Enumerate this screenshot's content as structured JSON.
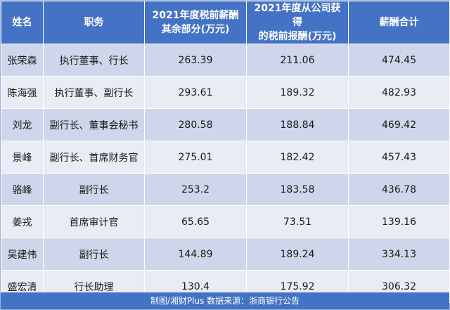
{
  "table": {
    "headers": [
      "姓名",
      "职务",
      "2021年度税前薪酬\n其余部分(万元)",
      "2021年度从公司获得\n的税前报酬(万元)",
      "薪酬合计"
    ],
    "rows": [
      [
        "张荣森",
        "执行董事、行长",
        "263.39",
        "211.06",
        "474.45"
      ],
      [
        "陈海强",
        "执行董事、副行长",
        "293.61",
        "189.32",
        "482.93"
      ],
      [
        "刘龙",
        "副行长、董事会秘书",
        "280.58",
        "188.84",
        "469.42"
      ],
      [
        "景峰",
        "副行长、首席财务官",
        "275.01",
        "182.42",
        "457.43"
      ],
      [
        "骆峰",
        "副行长",
        "253.2",
        "183.58",
        "436.78"
      ],
      [
        "姜戎",
        "首席审计官",
        "65.65",
        "73.51",
        "139.16"
      ],
      [
        "吴建伟",
        "副行长",
        "144.89",
        "189.24",
        "334.13"
      ],
      [
        "盛宏清",
        "行长助理",
        "130.4",
        "175.92",
        "306.32"
      ]
    ]
  },
  "footer": {
    "text": "制图/湘财Plus 数据来源：浙商银行公告"
  },
  "colors": {
    "header_bg": "#4472c4",
    "row_dark": "#cfd5ea",
    "row_light": "#e9ebf5"
  }
}
